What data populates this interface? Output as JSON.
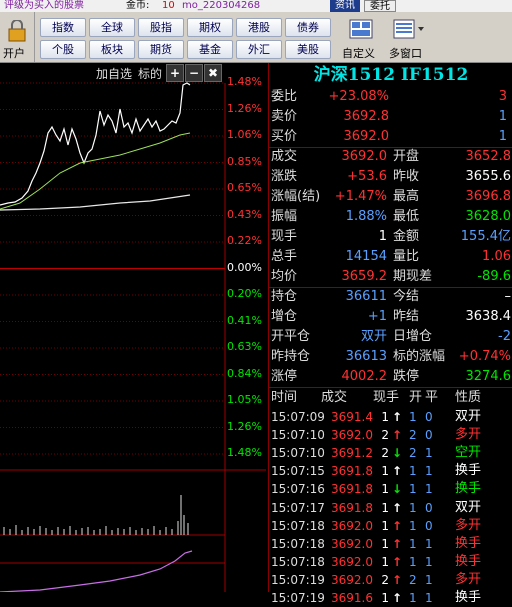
{
  "titlebar": {
    "caption": "评级为买入的股票",
    "coin_label": "金币:",
    "coin": "10",
    "user": "mo_220304268",
    "buttons": [
      "资讯",
      "委托"
    ]
  },
  "toolbar": {
    "open": "开户",
    "buttons": [
      [
        "指数",
        "全球",
        "股指",
        "期权",
        "港股",
        "债券"
      ],
      [
        "个股",
        "板块",
        "期货",
        "基金",
        "外汇",
        "美股"
      ]
    ],
    "custom": "自定义",
    "multi": "多窗口"
  },
  "chart": {
    "actions": [
      "加自选",
      "标的"
    ],
    "tools": [
      "+",
      "−",
      "✖"
    ],
    "scale": [
      "1.48%",
      "1.26%",
      "1.06%",
      "0.85%",
      "0.65%",
      "0.43%",
      "0.22%",
      "0.00%",
      "0.20%",
      "0.41%",
      "0.63%",
      "0.84%",
      "1.05%",
      "1.26%",
      "1.48%"
    ],
    "scale_colors": [
      "#ff3232",
      "#ff3232",
      "#ff3232",
      "#ff3232",
      "#ff3232",
      "#ff3232",
      "#ff3232",
      "#ffffff",
      "#00e600",
      "#00e600",
      "#00e600",
      "#00e600",
      "#00e600",
      "#00e600",
      "#00e600"
    ]
  },
  "quote": {
    "title": "沪深1512 IF1512",
    "top_rows": [
      {
        "label": "委比",
        "value": "+23.08%",
        "extra": "3",
        "color": "#ff3232",
        "extra_color": "#ff3232"
      },
      {
        "label": "卖价",
        "value": "3692.8",
        "extra": "1",
        "color": "#ff3232",
        "extra_color": "#5aa0ff"
      },
      {
        "label": "买价",
        "value": "3692.0",
        "extra": "1",
        "color": "#ff3232",
        "extra_color": "#5aa0ff"
      }
    ],
    "rows": [
      [
        {
          "label": "成交",
          "value": "3692.0",
          "color": "#ff3232"
        },
        {
          "label": "开盘",
          "value": "3652.8",
          "color": "#ff3232"
        }
      ],
      [
        {
          "label": "涨跌",
          "value": "+53.6",
          "color": "#ff3232"
        },
        {
          "label": "昨收",
          "value": "3655.6",
          "color": "#ffffff"
        }
      ],
      [
        {
          "label": "涨幅(结)",
          "value": "+1.47%",
          "color": "#ff3232"
        },
        {
          "label": "最高",
          "value": "3696.8",
          "color": "#ff3232"
        }
      ],
      [
        {
          "label": "振幅",
          "value": "1.88%",
          "color": "#5aa0ff"
        },
        {
          "label": "最低",
          "value": "3628.0",
          "color": "#00e600"
        }
      ],
      [
        {
          "label": "现手",
          "value": "1",
          "color": "#ffffff"
        },
        {
          "label": "金额",
          "value": "155.4亿",
          "color": "#5aa0ff"
        }
      ],
      [
        {
          "label": "总手",
          "value": "14154",
          "color": "#5aa0ff"
        },
        {
          "label": "量比",
          "value": "1.06",
          "color": "#ff3232"
        }
      ],
      [
        {
          "label": "均价",
          "value": "3659.2",
          "color": "#ff3232"
        },
        {
          "label": "期现差",
          "value": "-89.6",
          "color": "#00e600"
        }
      ],
      [
        {
          "label": "持仓",
          "value": "36611",
          "color": "#5aa0ff"
        },
        {
          "label": "今结",
          "value": "–",
          "color": "#ffffff"
        }
      ],
      [
        {
          "label": "增仓",
          "value": "+1",
          "color": "#5aa0ff"
        },
        {
          "label": "昨结",
          "value": "3638.4",
          "color": "#ffffff"
        }
      ],
      [
        {
          "label": "开平仓",
          "value": "双开",
          "color": "#5aa0ff"
        },
        {
          "label": "日增仓",
          "value": "-2",
          "color": "#5aa0ff"
        }
      ],
      [
        {
          "label": "昨持仓",
          "value": "36613",
          "color": "#5aa0ff"
        },
        {
          "label": "标的涨幅",
          "value": "+0.74%",
          "color": "#ff3232"
        }
      ],
      [
        {
          "label": "涨停",
          "value": "4002.2",
          "color": "#ff3232"
        },
        {
          "label": "跌停",
          "value": "3274.6",
          "color": "#00e600"
        }
      ]
    ]
  },
  "ticks": {
    "header": [
      "时间",
      "成交",
      "现手",
      "开",
      "平",
      "性质"
    ],
    "rows": [
      {
        "time": "15:07:09",
        "price": "3691.4",
        "vol": "1",
        "arrow": "↑",
        "open": "1",
        "close": "0",
        "kind": "双开",
        "color": "#ffffff"
      },
      {
        "time": "15:07:10",
        "price": "3692.0",
        "vol": "2",
        "arrow": "↑",
        "open": "2",
        "close": "0",
        "kind": "多开",
        "color": "#ff3232"
      },
      {
        "time": "15:07:10",
        "price": "3691.2",
        "vol": "2",
        "arrow": "↓",
        "open": "2",
        "close": "1",
        "kind": "空开",
        "color": "#00e600"
      },
      {
        "time": "15:07:15",
        "price": "3691.8",
        "vol": "1",
        "arrow": "↑",
        "open": "1",
        "close": "1",
        "kind": "换手",
        "color": "#ffffff"
      },
      {
        "time": "15:07:16",
        "price": "3691.8",
        "vol": "1",
        "arrow": "↓",
        "open": "1",
        "close": "1",
        "kind": "换手",
        "color": "#00e600"
      },
      {
        "time": "15:07:17",
        "price": "3691.8",
        "vol": "1",
        "arrow": "↑",
        "open": "1",
        "close": "0",
        "kind": "双开",
        "color": "#ffffff"
      },
      {
        "time": "15:07:18",
        "price": "3692.0",
        "vol": "1",
        "arrow": "↑",
        "open": "1",
        "close": "0",
        "kind": "多开",
        "color": "#ff3232"
      },
      {
        "time": "15:07:18",
        "price": "3692.0",
        "vol": "1",
        "arrow": "↑",
        "open": "1",
        "close": "1",
        "kind": "换手",
        "color": "#ff3232"
      },
      {
        "time": "15:07:18",
        "price": "3692.0",
        "vol": "1",
        "arrow": "↑",
        "open": "1",
        "close": "1",
        "kind": "换手",
        "color": "#ff3232"
      },
      {
        "time": "15:07:19",
        "price": "3692.0",
        "vol": "2",
        "arrow": "↑",
        "open": "2",
        "close": "1",
        "kind": "多开",
        "color": "#ff3232"
      },
      {
        "time": "15:07:19",
        "price": "3691.6",
        "vol": "1",
        "arrow": "↑",
        "open": "1",
        "close": "1",
        "kind": "换手",
        "color": "#ffffff"
      }
    ]
  }
}
